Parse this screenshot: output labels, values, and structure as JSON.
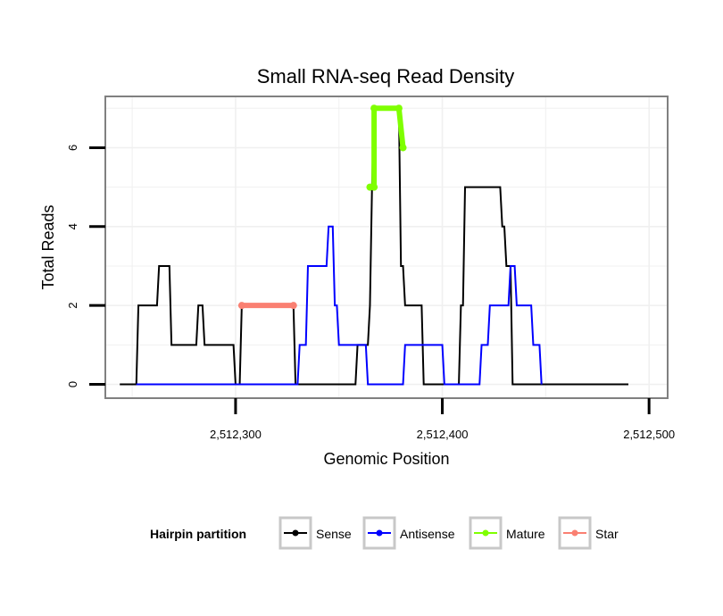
{
  "chart_data": {
    "type": "line",
    "title": "Small RNA-seq Read Density",
    "xlabel": "Genomic Position",
    "ylabel": "Total Reads",
    "xlim": [
      2512237,
      2512509
    ],
    "ylim": [
      -0.35,
      7.3
    ],
    "x_ticks": [
      2512300,
      2512400,
      2512500
    ],
    "x_tick_labels": [
      "2,512,300",
      "2,512,400",
      "2,512,500"
    ],
    "y_ticks": [
      0,
      2,
      4,
      6
    ],
    "y_tick_labels": [
      "0",
      "2",
      "4",
      "6"
    ],
    "grid": true,
    "legend": {
      "title": "Hairpin partition",
      "position": "bottom",
      "entries": [
        {
          "label": "Sense",
          "color": "#000000"
        },
        {
          "label": "Antisense",
          "color": "#0000ff"
        },
        {
          "label": "Mature",
          "color": "#7fff00"
        },
        {
          "label": "Star",
          "color": "#fa8072"
        }
      ]
    },
    "series": [
      {
        "name": "Sense",
        "color": "#000000",
        "points": [
          [
            2512244,
            0
          ],
          [
            2512252,
            0
          ],
          [
            2512253,
            2
          ],
          [
            2512262,
            2
          ],
          [
            2512263,
            3
          ],
          [
            2512268,
            3
          ],
          [
            2512269,
            1
          ],
          [
            2512281,
            1
          ],
          [
            2512282,
            2
          ],
          [
            2512284,
            2
          ],
          [
            2512285,
            1
          ],
          [
            2512299,
            1
          ],
          [
            2512300,
            0
          ],
          [
            2512302,
            0
          ],
          [
            2512303,
            2
          ],
          [
            2512328,
            2
          ],
          [
            2512329,
            0
          ],
          [
            2512358,
            0
          ],
          [
            2512359,
            1
          ],
          [
            2512364,
            1
          ],
          [
            2512365,
            2
          ],
          [
            2512366,
            5
          ],
          [
            2512367,
            7
          ],
          [
            2512379,
            7
          ],
          [
            2512380,
            3
          ],
          [
            2512381,
            3
          ],
          [
            2512382,
            2
          ],
          [
            2512390,
            2
          ],
          [
            2512391,
            0
          ],
          [
            2512408,
            0
          ],
          [
            2512409,
            2
          ],
          [
            2512410,
            2
          ],
          [
            2512411,
            5
          ],
          [
            2512428,
            5
          ],
          [
            2512429,
            4
          ],
          [
            2512430,
            4
          ],
          [
            2512431,
            3
          ],
          [
            2512433,
            3
          ],
          [
            2512434,
            0
          ],
          [
            2512490,
            0
          ]
        ]
      },
      {
        "name": "Antisense",
        "color": "#0000ff",
        "points": [
          [
            2512252,
            0
          ],
          [
            2512330,
            0
          ],
          [
            2512331,
            1
          ],
          [
            2512334,
            1
          ],
          [
            2512335,
            3
          ],
          [
            2512344,
            3
          ],
          [
            2512345,
            4
          ],
          [
            2512347,
            4
          ],
          [
            2512348,
            2
          ],
          [
            2512349,
            2
          ],
          [
            2512350,
            1
          ],
          [
            2512363,
            1
          ],
          [
            2512364,
            0
          ],
          [
            2512381,
            0
          ],
          [
            2512382,
            1
          ],
          [
            2512400,
            1
          ],
          [
            2512401,
            0
          ],
          [
            2512418,
            0
          ],
          [
            2512419,
            1
          ],
          [
            2512422,
            1
          ],
          [
            2512423,
            2
          ],
          [
            2512432,
            2
          ],
          [
            2512433,
            3
          ],
          [
            2512435,
            3
          ],
          [
            2512436,
            2
          ],
          [
            2512443,
            2
          ],
          [
            2512444,
            1
          ],
          [
            2512447,
            1
          ],
          [
            2512448,
            0
          ]
        ]
      },
      {
        "name": "Mature",
        "color": "#7fff00",
        "points": [
          [
            2512365,
            5
          ],
          [
            2512367,
            5
          ],
          [
            2512367,
            7
          ],
          [
            2512379,
            7
          ],
          [
            2512381,
            6
          ]
        ]
      },
      {
        "name": "Star",
        "color": "#fa8072",
        "points": [
          [
            2512303,
            2
          ],
          [
            2512328,
            2
          ]
        ]
      }
    ]
  }
}
